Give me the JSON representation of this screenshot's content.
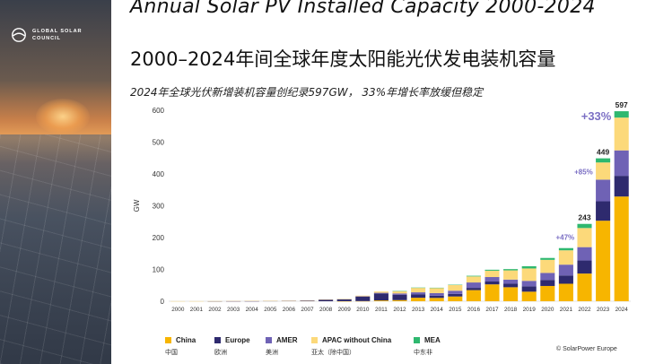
{
  "brand": {
    "name": "GLOBAL SOLAR COUNCIL",
    "line1": "GLOBAL SOLAR",
    "line2": "COUNCIL"
  },
  "title_en": "Annual Solar PV Installed Capacity 2000-2024",
  "title_cn": "2000–2024年间全球年度太阳能光伏发电装机容量",
  "subtitle": "2024年全球光伏新增装机容量创纪录597GW， 33%年增长率放缓但稳定",
  "source": "© SolarPower Europe",
  "colors": {
    "china": "#f7b500",
    "europe": "#2e2a6e",
    "amer": "#6f62b5",
    "apac": "#fcd97a",
    "mea": "#2fb86f",
    "growth": "#7b6fc4"
  },
  "chart_data": {
    "type": "bar",
    "stacked": true,
    "title": "Annual Solar PV Installed Capacity 2000-2024",
    "xlabel": "",
    "ylabel": "GW",
    "ylim": [
      0,
      600
    ],
    "yticks": [
      0,
      100,
      200,
      300,
      400,
      500,
      600
    ],
    "categories": [
      "2000",
      "2001",
      "2002",
      "2003",
      "2004",
      "2005",
      "2006",
      "2007",
      "2008",
      "2009",
      "2010",
      "2011",
      "2012",
      "2013",
      "2014",
      "2015",
      "2016",
      "2017",
      "2018",
      "2019",
      "2020",
      "2021",
      "2022",
      "2023",
      "2024"
    ],
    "series": [
      {
        "name": "China",
        "name_cn": "中国",
        "color": "#f7b500",
        "values": [
          0,
          0,
          0,
          0,
          0,
          0,
          0,
          0,
          0,
          0.2,
          0.5,
          2.5,
          3.5,
          11,
          10.5,
          15,
          35,
          53,
          44,
          30,
          48,
          55,
          87,
          253,
          329
        ]
      },
      {
        "name": "Europe",
        "name_cn": "欧洲",
        "color": "#2e2a6e",
        "values": [
          0,
          0,
          0.1,
          0.2,
          0.5,
          1,
          1.3,
          2,
          5,
          6,
          14,
          22,
          17,
          11,
          7,
          8,
          7,
          9,
          11,
          17,
          19,
          26,
          41,
          61,
          65
        ]
      },
      {
        "name": "AMER",
        "name_cn": "美洲",
        "color": "#6f62b5",
        "values": [
          0,
          0,
          0,
          0.1,
          0.1,
          0.1,
          0.2,
          0.2,
          0.4,
          0.5,
          1,
          2,
          4,
          6,
          8,
          10,
          17,
          14,
          13,
          17,
          22,
          34,
          42,
          68,
          80
        ]
      },
      {
        "name": "APAC without China",
        "name_cn": "亚太（除中国）",
        "color": "#fcd97a",
        "values": [
          0.3,
          0.3,
          0.4,
          0.4,
          0.4,
          0.4,
          0.4,
          0.4,
          0.4,
          0.5,
          2,
          4,
          7,
          14,
          16,
          18,
          19,
          20,
          29,
          39,
          41,
          45,
          60,
          54,
          103
        ]
      },
      {
        "name": "MEA",
        "name_cn": "中东非",
        "color": "#2fb86f",
        "values": [
          0,
          0,
          0,
          0,
          0,
          0,
          0,
          0,
          0,
          0,
          0,
          0,
          0.5,
          1,
          1,
          1,
          2,
          3,
          4,
          7,
          6,
          7,
          13,
          13,
          20
        ]
      }
    ],
    "totals_labeled": [
      {
        "year": "2022",
        "value": "243"
      },
      {
        "year": "2023",
        "value": "449"
      },
      {
        "year": "2024",
        "value": "597"
      }
    ],
    "growth_labels": [
      {
        "year": "2022",
        "value": "+47%"
      },
      {
        "year": "2023",
        "value": "+85%"
      },
      {
        "year": "2024",
        "value": "+33%"
      }
    ]
  }
}
